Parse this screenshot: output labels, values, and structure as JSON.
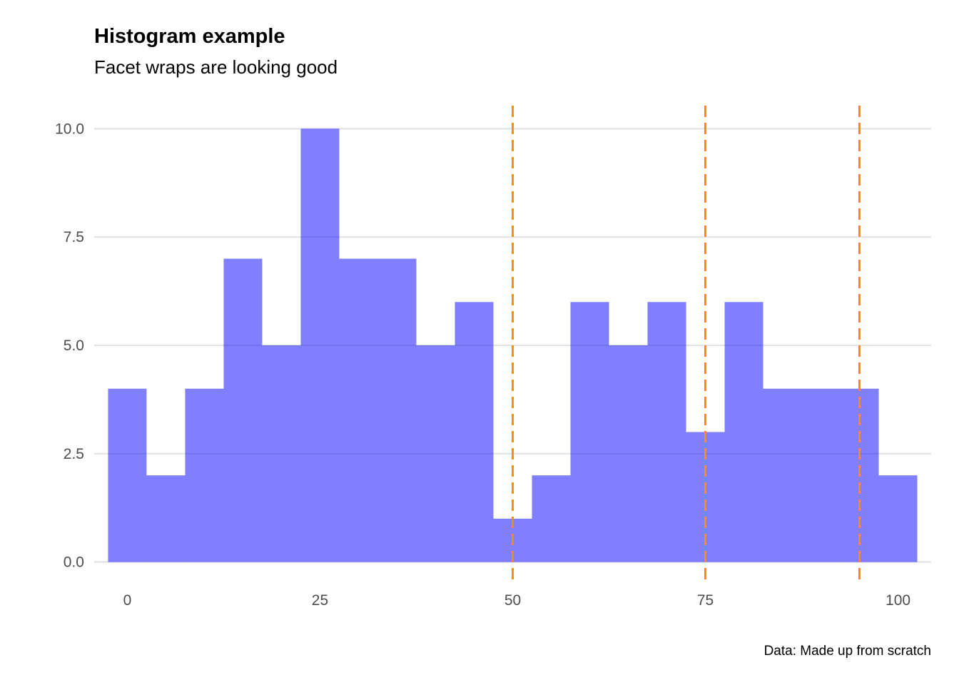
{
  "chart_data": {
    "type": "bar",
    "title": "Histogram example",
    "subtitle": "Facet wraps are looking good",
    "caption": "Data: Made up from scratch",
    "xlabel": "",
    "ylabel": "",
    "bin_width": 5,
    "bins": [
      {
        "x": 0,
        "count": 4
      },
      {
        "x": 5,
        "count": 2
      },
      {
        "x": 10,
        "count": 4
      },
      {
        "x": 15,
        "count": 7
      },
      {
        "x": 20,
        "count": 5
      },
      {
        "x": 25,
        "count": 10
      },
      {
        "x": 30,
        "count": 7
      },
      {
        "x": 35,
        "count": 7
      },
      {
        "x": 40,
        "count": 5
      },
      {
        "x": 45,
        "count": 6
      },
      {
        "x": 50,
        "count": 1
      },
      {
        "x": 55,
        "count": 2
      },
      {
        "x": 60,
        "count": 6
      },
      {
        "x": 65,
        "count": 5
      },
      {
        "x": 70,
        "count": 6
      },
      {
        "x": 75,
        "count": 3
      },
      {
        "x": 80,
        "count": 6
      },
      {
        "x": 85,
        "count": 4
      },
      {
        "x": 90,
        "count": 4
      },
      {
        "x": 95,
        "count": 4
      },
      {
        "x": 100,
        "count": 2
      }
    ],
    "reference_lines_x": [
      50,
      75,
      95
    ],
    "x_ticks": [
      {
        "value": 0,
        "label": "0"
      },
      {
        "value": 25,
        "label": "25"
      },
      {
        "value": 50,
        "label": "50"
      },
      {
        "value": 75,
        "label": "75"
      },
      {
        "value": 100,
        "label": "100"
      }
    ],
    "y_ticks": [
      {
        "value": 0,
        "label": "0.0"
      },
      {
        "value": 2.5,
        "label": "2.5"
      },
      {
        "value": 5,
        "label": "5.0"
      },
      {
        "value": 7.5,
        "label": "7.5"
      },
      {
        "value": 10,
        "label": "10.0"
      }
    ],
    "xlim": [
      -4.3,
      104.3
    ],
    "ylim": [
      -0.5,
      10.5
    ],
    "grid": "horizontal-major",
    "colors": {
      "bar_fill": "#0000ff",
      "bar_opacity": 0.5,
      "reference_line": "#ff8c00",
      "grid": "#e3e3e3"
    }
  }
}
